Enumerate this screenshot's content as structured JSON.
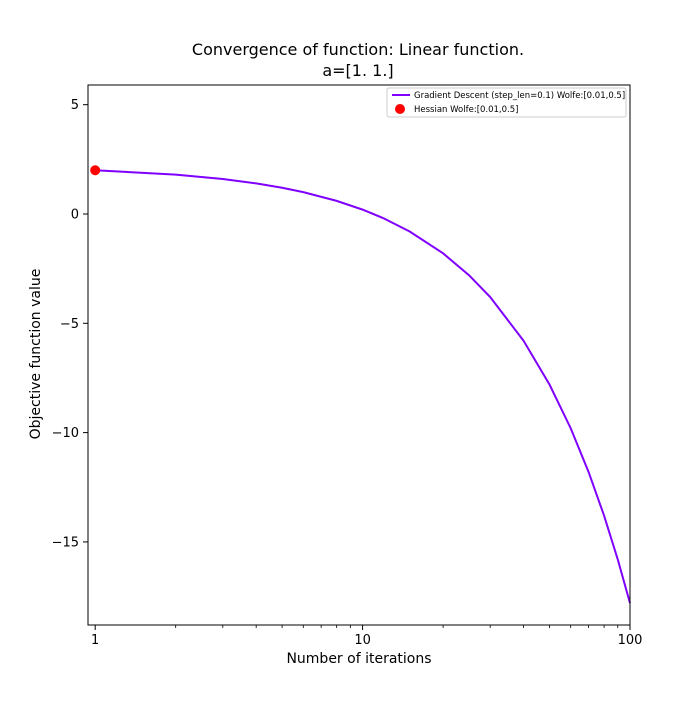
{
  "chart_data": {
    "type": "line",
    "title": "Convergence of function: Linear function.",
    "subtitle": "a=[1. 1.]",
    "xlabel": "Number of iterations",
    "ylabel": "Objective function value",
    "xscale": "log",
    "xlim": [
      0.94,
      100
    ],
    "ylim": [
      -18.8,
      5.9
    ],
    "grid": false,
    "legend_placement": "top-right",
    "x_ticks": [
      {
        "value": 1,
        "label": "1"
      },
      {
        "value": 10,
        "label": "10"
      },
      {
        "value": 100,
        "label": "100"
      }
    ],
    "y_ticks": [
      {
        "value": 5,
        "label": "5"
      },
      {
        "value": 0,
        "label": "0"
      },
      {
        "value": -5,
        "label": "−5"
      },
      {
        "value": -10,
        "label": "−10"
      },
      {
        "value": -15,
        "label": "−15"
      }
    ],
    "series": [
      {
        "name": "Gradient Descent (step_len=0.1) Wolfe:[0.01,0.5]",
        "kind": "line",
        "color": "#7F00FF",
        "x": [
          1,
          2,
          3,
          4,
          5,
          6,
          8,
          10,
          12,
          15,
          20,
          25,
          30,
          40,
          50,
          60,
          70,
          80,
          90,
          100
        ],
        "y": [
          2.0,
          1.8,
          1.6,
          1.4,
          1.2,
          1.0,
          0.6,
          0.2,
          -0.2,
          -0.8,
          -1.8,
          -2.8,
          -3.8,
          -5.8,
          -7.8,
          -9.8,
          -11.8,
          -13.8,
          -15.8,
          -17.8
        ]
      },
      {
        "name": "Hessian Wolfe:[0.01,0.5]",
        "kind": "scatter",
        "color": "#FF0000",
        "x": [
          1
        ],
        "y": [
          2.0
        ]
      }
    ]
  }
}
